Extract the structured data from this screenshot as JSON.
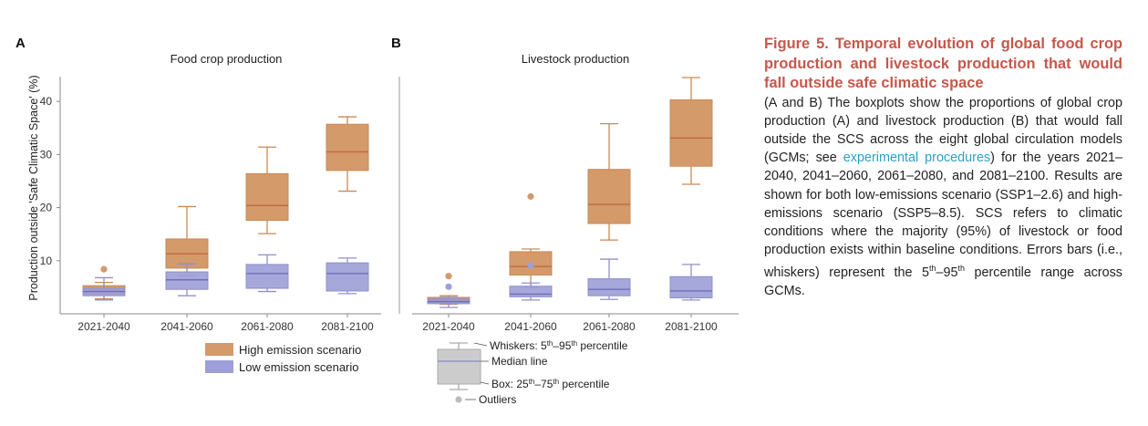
{
  "figure": {
    "panels": [
      {
        "letter": "A",
        "title": "Food crop production"
      },
      {
        "letter": "B",
        "title": "Livestock production"
      }
    ],
    "ylabel": "Production outside 'Safe Climatic Space' (%)",
    "legend": {
      "high": {
        "label": "High emission scenario",
        "color": "#d49a6a"
      },
      "low": {
        "label": "Low emission scenario",
        "color": "#9e9fd8"
      }
    },
    "key": {
      "whiskers_prefix": "Whiskers: 5",
      "whiskers_sup1": "th",
      "whiskers_mid": "–95",
      "whiskers_sup2": "th",
      "whiskers_suffix": " percentile",
      "median": "Median line",
      "box_prefix": "Box: 25",
      "box_sup1": "th",
      "box_mid": "–75",
      "box_sup2": "th",
      "box_suffix": " percentile",
      "outliers": "Outliers"
    }
  },
  "chart_data": [
    {
      "type": "box",
      "title": "Food crop production",
      "ylabel": "Production outside 'Safe Climatic Space' (%)",
      "categories": [
        "2021-2040",
        "2041-2060",
        "2061-2080",
        "2081-2100"
      ],
      "ylim": [
        0,
        44
      ],
      "yticks": [
        10,
        20,
        30,
        40
      ],
      "series": [
        {
          "name": "High emission scenario",
          "color": "#d49a6a",
          "boxes": [
            {
              "whislo": 2.8,
              "q1": 3.7,
              "med": 4.4,
              "q3": 5.3,
              "whishi": 5.9,
              "outliers": [
                8.4
              ]
            },
            {
              "whislo": 7.2,
              "q1": 8.6,
              "med": 11.3,
              "q3": 14.1,
              "whishi": 20.2,
              "outliers": []
            },
            {
              "whislo": 15.1,
              "q1": 17.6,
              "med": 20.4,
              "q3": 26.4,
              "whishi": 31.4,
              "outliers": []
            },
            {
              "whislo": 23.1,
              "q1": 27.0,
              "med": 30.5,
              "q3": 35.7,
              "whishi": 37.1,
              "outliers": []
            }
          ]
        },
        {
          "name": "Low emission scenario",
          "color": "#9e9fd8",
          "boxes": [
            {
              "whislo": 2.6,
              "q1": 3.4,
              "med": 4.2,
              "q3": 4.8,
              "whishi": 6.8,
              "outliers": []
            },
            {
              "whislo": 3.4,
              "q1": 4.6,
              "med": 6.4,
              "q3": 7.9,
              "whishi": 9.4,
              "outliers": []
            },
            {
              "whislo": 4.2,
              "q1": 4.8,
              "med": 7.6,
              "q3": 9.3,
              "whishi": 11.1,
              "outliers": []
            },
            {
              "whislo": 3.8,
              "q1": 4.3,
              "med": 7.6,
              "q3": 9.6,
              "whishi": 10.5,
              "outliers": []
            }
          ]
        }
      ]
    },
    {
      "type": "box",
      "title": "Livestock production",
      "categories": [
        "2021-2040",
        "2041-2060",
        "2061-2080",
        "2081-2100"
      ],
      "ylim": [
        0,
        44
      ],
      "series": [
        {
          "name": "High emission scenario",
          "color": "#d49a6a",
          "boxes": [
            {
              "whislo": 1.8,
              "q1": 2.1,
              "med": 2.6,
              "q3": 3.1,
              "whishi": 3.4,
              "outliers": [
                7.1
              ]
            },
            {
              "whislo": 4.9,
              "q1": 7.3,
              "med": 8.9,
              "q3": 11.7,
              "whishi": 12.2,
              "outliers": [
                22.1
              ]
            },
            {
              "whislo": 13.9,
              "q1": 17.0,
              "med": 20.6,
              "q3": 27.2,
              "whishi": 35.8,
              "outliers": []
            },
            {
              "whislo": 24.4,
              "q1": 27.8,
              "med": 33.1,
              "q3": 40.3,
              "whishi": 44.5,
              "outliers": []
            }
          ]
        },
        {
          "name": "Low emission scenario",
          "color": "#9e9fd8",
          "boxes": [
            {
              "whislo": 1.2,
              "q1": 1.9,
              "med": 2.3,
              "q3": 2.8,
              "whishi": 3.1,
              "outliers": [
                5.1
              ]
            },
            {
              "whislo": 2.6,
              "q1": 3.2,
              "med": 3.7,
              "q3": 5.2,
              "whishi": 5.8,
              "outliers": [
                9.1
              ]
            },
            {
              "whislo": 2.7,
              "q1": 3.4,
              "med": 4.6,
              "q3": 6.6,
              "whishi": 10.3,
              "outliers": []
            },
            {
              "whislo": 2.6,
              "q1": 3.0,
              "med": 4.3,
              "q3": 7.0,
              "whishi": 9.3,
              "outliers": []
            }
          ]
        }
      ]
    }
  ],
  "caption": {
    "title": "Figure 5. Temporal evolution of global food crop production and livestock production that would fall outside safe climatic space",
    "body_1": "(A and B) The boxplots show the proportions of global crop production (A) and livestock production (B) that would fall outside the SCS across the eight global circulation models (GCMs; see ",
    "link": "experimental procedures",
    "body_2": ") for the years 2021–2040, 2041–2060, 2061–2080, and 2081–2100. Results are shown for both low-emissions scenario (SSP1–2.6) and high-emissions scenario (SSP5–8.5). SCS refers to climatic conditions where the majority (95%) of livestock or food production exists within baseline conditions. Errors bars (i.e., whiskers) represent the 5",
    "sup_1": "th",
    "body_3": "–95",
    "sup_2": "th",
    "body_4": " percentile range across GCMs."
  }
}
